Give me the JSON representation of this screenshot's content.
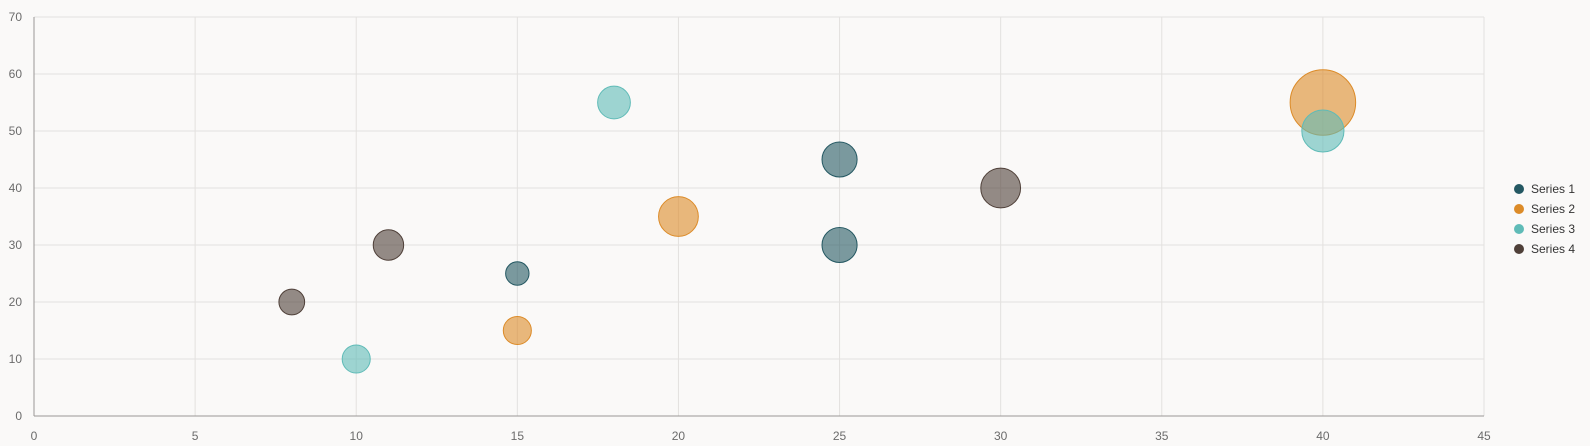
{
  "chart_data": {
    "type": "bubble",
    "title": "",
    "xlabel": "",
    "ylabel": "",
    "xlim": [
      0,
      45
    ],
    "ylim": [
      0,
      70
    ],
    "x_ticks": [
      "0",
      "5",
      "10",
      "15",
      "20",
      "25",
      "30",
      "35",
      "40",
      "45"
    ],
    "y_ticks": [
      "0",
      "10",
      "20",
      "30",
      "40",
      "50",
      "60",
      "70"
    ],
    "grid": true,
    "legend_position": "right",
    "series": [
      {
        "name": "Series 1",
        "color": "#245862",
        "points": [
          {
            "x": 15,
            "y": 25,
            "size": 10
          },
          {
            "x": 25,
            "y": 45,
            "size": 15
          },
          {
            "x": 25,
            "y": 30,
            "size": 15
          }
        ]
      },
      {
        "name": "Series 2",
        "color": "#dc8b28",
        "points": [
          {
            "x": 15,
            "y": 15,
            "size": 12
          },
          {
            "x": 20,
            "y": 35,
            "size": 17
          },
          {
            "x": 40,
            "y": 55,
            "size": 28
          }
        ]
      },
      {
        "name": "Series 3",
        "color": "#5fbbb7",
        "points": [
          {
            "x": 10,
            "y": 10,
            "size": 12
          },
          {
            "x": 18,
            "y": 55,
            "size": 14
          },
          {
            "x": 40,
            "y": 50,
            "size": 18
          }
        ]
      },
      {
        "name": "Series 4",
        "color": "#4f4039",
        "points": [
          {
            "x": 8,
            "y": 20,
            "size": 11
          },
          {
            "x": 11,
            "y": 30,
            "size": 13
          },
          {
            "x": 30,
            "y": 40,
            "size": 17
          }
        ]
      }
    ]
  }
}
